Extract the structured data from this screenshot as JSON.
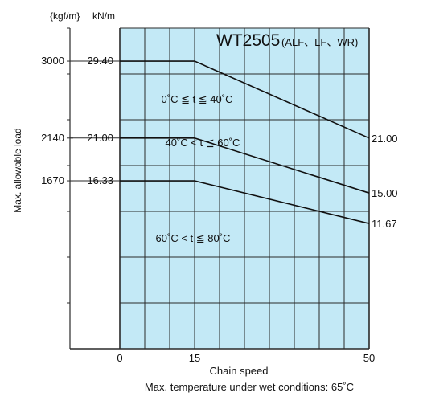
{
  "colors": {
    "plot_background": "#c3e9f6",
    "grid": "#2a2a2a",
    "line": "#111111",
    "text": "#111111"
  },
  "chart_data": {
    "type": "line",
    "title": "WT2505",
    "subtitle": "(ALF、LF、WR)",
    "xlabel": "Chain speed",
    "ylabel": "Max. allowable load",
    "unit_left": "{kgf/m}",
    "unit_right": "kN/m",
    "footnote": "Max. temperature under wet conditions: 65˚C",
    "xlim": [
      -10,
      50
    ],
    "ylim": [
      -2.0,
      33.0
    ],
    "x_ticks": [
      0,
      15,
      50
    ],
    "y_ticks": [
      {
        "kn": "29.40",
        "kgf": "3000"
      },
      {
        "kn": "21.00",
        "kgf": "2140"
      },
      {
        "kn": "16.33",
        "kgf": "1670"
      }
    ],
    "grid": true,
    "series": [
      {
        "name": "0˚C ≦ t ≦ 40˚C",
        "x": [
          0,
          15,
          50
        ],
        "y": [
          29.4,
          29.4,
          21.0
        ],
        "end_label": "21.00"
      },
      {
        "name": "40˚C < t ≦ 60˚C",
        "x": [
          0,
          15,
          50
        ],
        "y": [
          21.0,
          21.0,
          15.0
        ],
        "end_label": "15.00"
      },
      {
        "name": "60˚C < t ≦ 80˚C",
        "x": [
          0,
          15,
          50
        ],
        "y": [
          16.33,
          16.33,
          11.67
        ],
        "end_label": "11.67"
      }
    ]
  }
}
